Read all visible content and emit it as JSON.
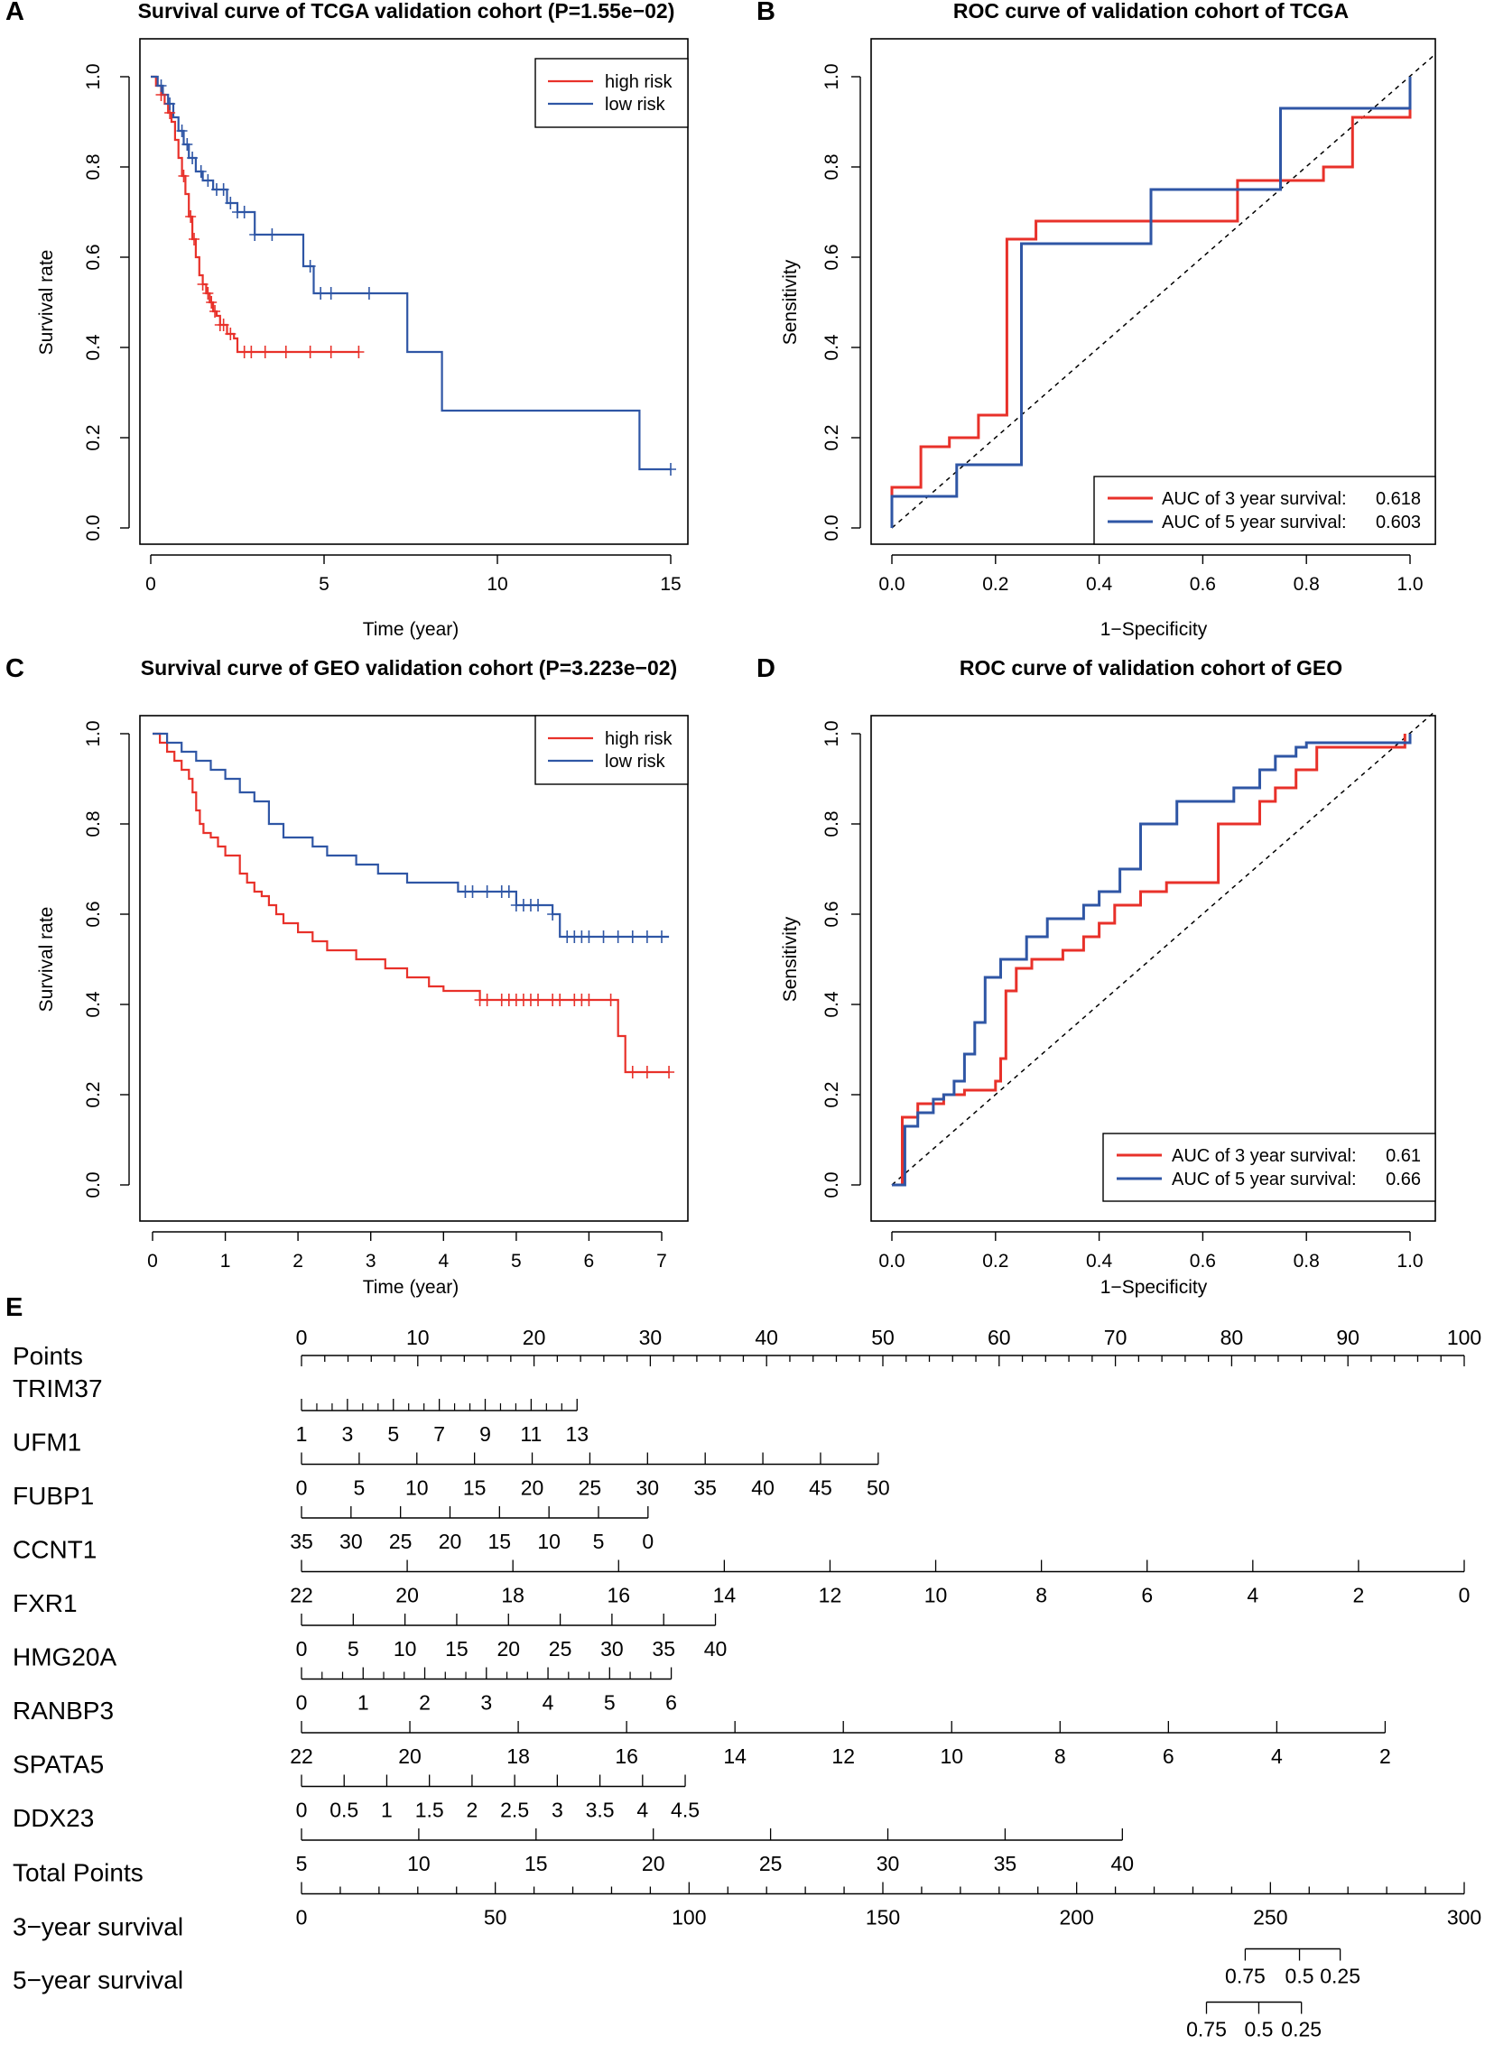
{
  "chart_data": [
    {
      "panel": "A",
      "type": "line",
      "title": "Survival curve of TCGA validation cohort (P=1.55e−02)",
      "xlabel": "Time (year)",
      "ylabel": "Survival rate",
      "xlim": [
        0,
        15
      ],
      "ylim": [
        0,
        1
      ],
      "xticks": [
        "0",
        "5",
        "10",
        "15"
      ],
      "yticks": [
        "0.0",
        "0.2",
        "0.4",
        "0.6",
        "0.8",
        "1.0"
      ],
      "legend": [
        "high risk",
        "low risk"
      ],
      "colors": [
        "#e8312a",
        "#2f56a5"
      ],
      "series": [
        {
          "name": "high risk",
          "x": [
            0,
            0.15,
            0.3,
            0.4,
            0.5,
            0.6,
            0.7,
            0.8,
            0.9,
            1.0,
            1.1,
            1.2,
            1.3,
            1.4,
            1.5,
            1.6,
            1.7,
            1.8,
            1.9,
            2.0,
            2.2,
            2.4,
            2.5,
            6.0
          ],
          "y": [
            1.0,
            0.98,
            0.96,
            0.94,
            0.92,
            0.9,
            0.86,
            0.82,
            0.78,
            0.74,
            0.69,
            0.64,
            0.6,
            0.56,
            0.54,
            0.52,
            0.5,
            0.48,
            0.47,
            0.45,
            0.43,
            0.42,
            0.39,
            0.39
          ],
          "censor_x": [
            0.3,
            0.55,
            0.95,
            1.15,
            1.25,
            1.5,
            1.65,
            1.75,
            1.85,
            2.0,
            2.1,
            2.3,
            2.7,
            2.9,
            3.3,
            3.9,
            4.6,
            5.2,
            6.0
          ]
        },
        {
          "name": "low risk",
          "x": [
            0,
            0.2,
            0.35,
            0.5,
            0.65,
            0.8,
            0.95,
            1.1,
            1.3,
            1.5,
            1.8,
            2.2,
            2.5,
            3.0,
            4.4,
            4.7,
            7.4,
            8.4,
            14.1,
            15.0
          ],
          "y": [
            1.0,
            0.98,
            0.96,
            0.94,
            0.91,
            0.88,
            0.85,
            0.82,
            0.79,
            0.77,
            0.75,
            0.72,
            0.7,
            0.65,
            0.58,
            0.52,
            0.39,
            0.26,
            0.13,
            0.13
          ],
          "censor_x": [
            0.3,
            0.55,
            0.9,
            1.05,
            1.2,
            1.45,
            1.65,
            1.9,
            2.1,
            2.3,
            2.5,
            2.7,
            3.0,
            3.5,
            4.6,
            4.9,
            5.2,
            6.3,
            15.0
          ]
        }
      ]
    },
    {
      "panel": "B",
      "type": "line",
      "title": "ROC curve of validation cohort of TCGA",
      "xlabel": "1−Specificity",
      "ylabel": "Sensitivity",
      "xlim": [
        0,
        1
      ],
      "ylim": [
        0,
        1
      ],
      "xticks": [
        "0.0",
        "0.2",
        "0.4",
        "0.6",
        "0.8",
        "1.0"
      ],
      "yticks": [
        "0.0",
        "0.2",
        "0.4",
        "0.6",
        "0.8",
        "1.0"
      ],
      "legend": [
        "AUC of 3 year survival:",
        "AUC of 5 year survival:"
      ],
      "legend_values": [
        "0.618",
        "0.603"
      ],
      "colors": [
        "#e8312a",
        "#2f56a5"
      ],
      "series": [
        {
          "name": "AUC of 3 year survival",
          "x": [
            0,
            0,
            0.056,
            0.056,
            0.111,
            0.111,
            0.167,
            0.167,
            0.222,
            0.222,
            0.278,
            0.278,
            0.667,
            0.667,
            0.833,
            0.833,
            0.889,
            0.889,
            1.0,
            1.0
          ],
          "y": [
            0,
            0.09,
            0.09,
            0.18,
            0.18,
            0.2,
            0.2,
            0.25,
            0.25,
            0.64,
            0.64,
            0.68,
            0.68,
            0.77,
            0.77,
            0.8,
            0.8,
            0.91,
            0.91,
            1.0
          ]
        },
        {
          "name": "AUC of 5 year survival",
          "x": [
            0,
            0,
            0.125,
            0.125,
            0.25,
            0.25,
            0.5,
            0.5,
            0.75,
            0.75,
            1.0,
            1.0
          ],
          "y": [
            0,
            0.07,
            0.07,
            0.14,
            0.14,
            0.63,
            0.63,
            0.75,
            0.75,
            0.93,
            0.93,
            1.0
          ]
        }
      ]
    },
    {
      "panel": "C",
      "type": "line",
      "title": "Survival curve of GEO validation cohort (P=3.223e−02)",
      "xlabel": "Time (year)",
      "ylabel": "Survival rate",
      "xlim": [
        0,
        7
      ],
      "ylim": [
        0,
        1
      ],
      "xticks": [
        "0",
        "1",
        "2",
        "3",
        "4",
        "5",
        "6",
        "7"
      ],
      "yticks": [
        "0.0",
        "0.2",
        "0.4",
        "0.6",
        "0.8",
        "1.0"
      ],
      "legend": [
        "high risk",
        "low risk"
      ],
      "colors": [
        "#e8312a",
        "#2f56a5"
      ],
      "series": [
        {
          "name": "high risk",
          "x": [
            0,
            0.1,
            0.2,
            0.3,
            0.4,
            0.5,
            0.55,
            0.6,
            0.65,
            0.7,
            0.8,
            0.9,
            1.0,
            1.2,
            1.3,
            1.4,
            1.5,
            1.6,
            1.7,
            1.8,
            2.0,
            2.2,
            2.4,
            2.8,
            3.2,
            3.5,
            3.8,
            4.0,
            4.5,
            6.4,
            6.5,
            7.1
          ],
          "y": [
            1.0,
            0.98,
            0.96,
            0.94,
            0.92,
            0.9,
            0.87,
            0.83,
            0.8,
            0.78,
            0.77,
            0.75,
            0.73,
            0.69,
            0.67,
            0.65,
            0.64,
            0.62,
            0.6,
            0.58,
            0.56,
            0.54,
            0.52,
            0.5,
            0.48,
            0.46,
            0.44,
            0.43,
            0.41,
            0.33,
            0.25,
            0.25
          ],
          "censor_x": [
            4.5,
            4.6,
            4.8,
            4.9,
            5.0,
            5.1,
            5.2,
            5.3,
            5.5,
            5.6,
            5.8,
            5.9,
            6.0,
            6.3,
            6.6,
            6.8,
            7.1
          ]
        },
        {
          "name": "low risk",
          "x": [
            0,
            0.2,
            0.4,
            0.6,
            0.8,
            1.0,
            1.2,
            1.4,
            1.6,
            1.8,
            2.2,
            2.4,
            2.8,
            3.1,
            3.5,
            4.2,
            5.0,
            5.5,
            5.6,
            7.1
          ],
          "y": [
            1.0,
            0.98,
            0.96,
            0.94,
            0.92,
            0.9,
            0.87,
            0.85,
            0.8,
            0.77,
            0.75,
            0.73,
            0.71,
            0.69,
            0.67,
            0.65,
            0.62,
            0.6,
            0.55,
            0.55
          ],
          "censor_x": [
            4.3,
            4.4,
            4.6,
            4.8,
            4.9,
            5.0,
            5.1,
            5.2,
            5.3,
            5.5,
            5.7,
            5.8,
            5.9,
            6.0,
            6.2,
            6.4,
            6.6,
            6.8,
            7.0
          ]
        }
      ]
    },
    {
      "panel": "D",
      "type": "line",
      "title": "ROC curve of validation cohort of GEO",
      "xlabel": "1−Specificity",
      "ylabel": "Sensitivity",
      "xlim": [
        0,
        1
      ],
      "ylim": [
        0,
        1
      ],
      "xticks": [
        "0.0",
        "0.2",
        "0.4",
        "0.6",
        "0.8",
        "1.0"
      ],
      "yticks": [
        "0.0",
        "0.2",
        "0.4",
        "0.6",
        "0.8",
        "1.0"
      ],
      "legend": [
        "AUC of 3 year survival:",
        "AUC of 5 year survival:"
      ],
      "legend_values": [
        "0.61",
        "0.66"
      ],
      "colors": [
        "#e8312a",
        "#2f56a5"
      ],
      "series": [
        {
          "name": "AUC of 3 year survival",
          "x": [
            0,
            0.02,
            0.02,
            0.05,
            0.05,
            0.1,
            0.1,
            0.14,
            0.14,
            0.2,
            0.2,
            0.21,
            0.21,
            0.22,
            0.22,
            0.24,
            0.24,
            0.27,
            0.27,
            0.33,
            0.33,
            0.37,
            0.37,
            0.4,
            0.4,
            0.43,
            0.43,
            0.48,
            0.48,
            0.53,
            0.53,
            0.63,
            0.63,
            0.71,
            0.71,
            0.74,
            0.74,
            0.78,
            0.78,
            0.82,
            0.82,
            0.99,
            0.99
          ],
          "y": [
            0,
            0,
            0.15,
            0.15,
            0.18,
            0.18,
            0.2,
            0.2,
            0.21,
            0.21,
            0.23,
            0.23,
            0.28,
            0.28,
            0.43,
            0.43,
            0.48,
            0.48,
            0.5,
            0.5,
            0.52,
            0.52,
            0.55,
            0.55,
            0.58,
            0.58,
            0.62,
            0.62,
            0.65,
            0.65,
            0.67,
            0.67,
            0.8,
            0.8,
            0.85,
            0.85,
            0.88,
            0.88,
            0.92,
            0.92,
            0.97,
            0.97,
            1.0
          ]
        },
        {
          "name": "AUC of 5 year survival",
          "x": [
            0,
            0.025,
            0.025,
            0.05,
            0.05,
            0.08,
            0.08,
            0.1,
            0.1,
            0.12,
            0.12,
            0.14,
            0.14,
            0.16,
            0.16,
            0.18,
            0.18,
            0.21,
            0.21,
            0.26,
            0.26,
            0.3,
            0.3,
            0.37,
            0.37,
            0.4,
            0.4,
            0.44,
            0.44,
            0.48,
            0.48,
            0.55,
            0.55,
            0.66,
            0.66,
            0.71,
            0.71,
            0.74,
            0.74,
            0.78,
            0.78,
            0.8,
            0.8,
            1.0,
            1.0
          ],
          "y": [
            0,
            0,
            0.13,
            0.13,
            0.16,
            0.16,
            0.19,
            0.19,
            0.2,
            0.2,
            0.23,
            0.23,
            0.29,
            0.29,
            0.36,
            0.36,
            0.46,
            0.46,
            0.5,
            0.5,
            0.55,
            0.55,
            0.59,
            0.59,
            0.62,
            0.62,
            0.65,
            0.65,
            0.7,
            0.7,
            0.8,
            0.8,
            0.85,
            0.85,
            0.88,
            0.88,
            0.92,
            0.92,
            0.95,
            0.95,
            0.97,
            0.97,
            0.98,
            0.98,
            1.0
          ]
        }
      ]
    },
    {
      "panel": "E",
      "type": "nomogram",
      "points_scale": {
        "label": "Points",
        "ticks": [
          "0",
          "10",
          "20",
          "30",
          "40",
          "50",
          "60",
          "70",
          "80",
          "90",
          "100"
        ]
      },
      "variables": [
        {
          "label": "TRIM37",
          "ticks": [
            "1",
            "3",
            "5",
            "7",
            "9",
            "11",
            "13"
          ],
          "start_points": 0,
          "end_points": 23.7,
          "minor": 12
        },
        {
          "label": "UFM1",
          "ticks": [
            "0",
            "5",
            "10",
            "15",
            "20",
            "25",
            "30",
            "35",
            "40",
            "45",
            "50"
          ],
          "start_points": 0,
          "end_points": 49.6,
          "minor": 10
        },
        {
          "label": "FUBP1",
          "ticks": [
            "35",
            "30",
            "25",
            "20",
            "15",
            "10",
            "5",
            "0"
          ],
          "start_points": 0,
          "end_points": 29.8,
          "minor": 7
        },
        {
          "label": "CCNT1",
          "ticks": [
            "22",
            "20",
            "18",
            "16",
            "14",
            "12",
            "10",
            "8",
            "6",
            "4",
            "2",
            "0"
          ],
          "start_points": 0,
          "end_points": 100,
          "minor": 11
        },
        {
          "label": "FXR1",
          "ticks": [
            "0",
            "5",
            "10",
            "15",
            "20",
            "25",
            "30",
            "35",
            "40"
          ],
          "start_points": 0,
          "end_points": 35.6,
          "minor": 8
        },
        {
          "label": "HMG20A",
          "ticks": [
            "0",
            "1",
            "2",
            "3",
            "4",
            "5",
            "6"
          ],
          "start_points": 0,
          "end_points": 31.8,
          "minor": 13
        },
        {
          "label": "RANBP3",
          "ticks": [
            "22",
            "20",
            "18",
            "16",
            "14",
            "12",
            "10",
            "8",
            "6",
            "4",
            "2"
          ],
          "start_points": 0,
          "end_points": 93.2,
          "minor": 10
        },
        {
          "label": "SPATA5",
          "ticks": [
            "0",
            "0.5",
            "1",
            "1.5",
            "2",
            "2.5",
            "3",
            "3.5",
            "4",
            "4.5"
          ],
          "start_points": 0,
          "end_points": 33.0,
          "minor": 9
        },
        {
          "label": "DDX23",
          "ticks": [
            "5",
            "10",
            "15",
            "20",
            "25",
            "30",
            "35",
            "40"
          ],
          "start_points": 0,
          "end_points": 70.6,
          "minor": 7
        }
      ],
      "total_points": {
        "label": "Total Points",
        "ticks": [
          "0",
          "50",
          "100",
          "150",
          "200",
          "250",
          "300"
        ]
      },
      "survival": [
        {
          "label": "3−year survival",
          "ticks": [
            "0.75",
            "0.5",
            "0.25"
          ],
          "total_points": [
            243.5,
            257.5,
            268.0
          ]
        },
        {
          "label": "5−year survival",
          "ticks": [
            "0.75",
            "0.5",
            "0.25"
          ],
          "total_points": [
            233.5,
            247.0,
            258.0
          ]
        }
      ]
    }
  ]
}
